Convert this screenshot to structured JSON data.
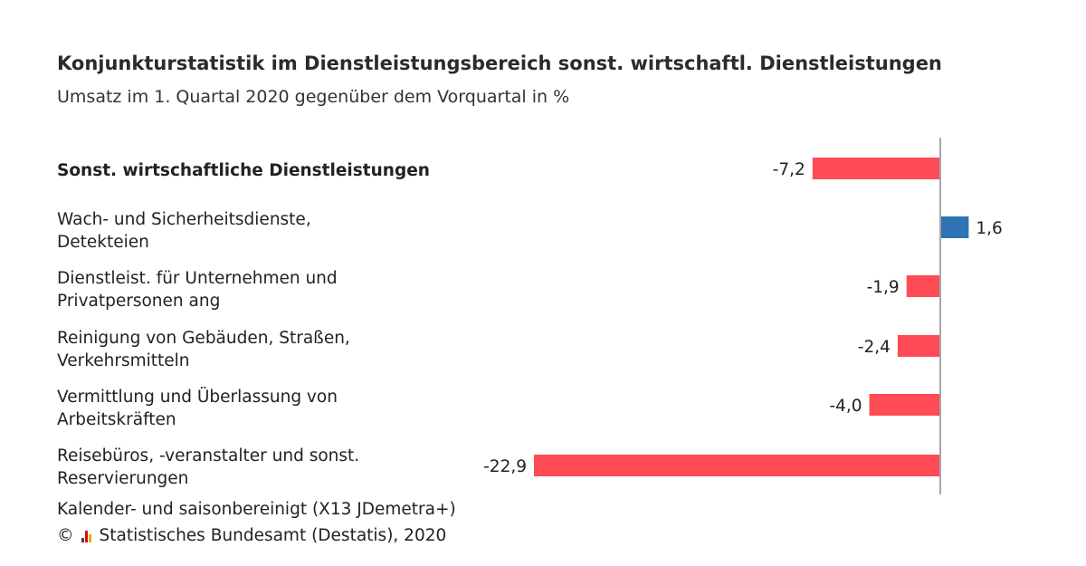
{
  "header": {
    "title": "Konjunkturstatistik im Dienstleistungsbereich sonst. wirtschaftl. Dienstleistungen",
    "subtitle": "Umsatz im 1. Quartal 2020 gegenüber dem Vorquartal in %"
  },
  "categories": [
    {
      "line1": "Sonst. wirtschaftliche Dienstleistungen",
      "line2": ""
    },
    {
      "line1": "Wach- und Sicherheitsdienste,",
      "line2": "Detekteien"
    },
    {
      "line1": "Dienstleist. für Unternehmen und",
      "line2": "Privatpersonen ang"
    },
    {
      "line1": "Reinigung von Gebäuden, Straßen,",
      "line2": "Verkehrsmitteln"
    },
    {
      "line1": "Vermittlung und Überlassung von",
      "line2": "Arbeitskräften"
    },
    {
      "line1": "Reisebüros, -veranstalter und sonst.",
      "line2": "Reservierungen"
    }
  ],
  "chart_data": {
    "type": "bar",
    "orientation": "horizontal",
    "title": "Konjunkturstatistik im Dienstleistungsbereich sonst. wirtschaftl. Dienstleistungen",
    "subtitle": "Umsatz im 1. Quartal 2020 gegenüber dem Vorquartal in %",
    "categories": [
      "Sonst. wirtschaftliche Dienstleistungen",
      "Wach- und Sicherheitsdienste, Detekteien",
      "Dienstleist. für Unternehmen und Privatpersonen ang",
      "Reinigung von Gebäuden, Straßen, Verkehrsmitteln",
      "Vermittlung und Überlassung von Arbeitskräften",
      "Reisebüros, -veranstalter und sonst. Reservierungen"
    ],
    "values": [
      -7.2,
      1.6,
      -1.9,
      -2.4,
      -4.0,
      -22.9
    ],
    "value_labels": [
      "-7,2",
      "1,6",
      "-1,9",
      "-2,4",
      "-4,0",
      "-22,9"
    ],
    "xlim": [
      -22.9,
      1.6
    ],
    "xlabel": "",
    "ylabel": "",
    "grid": false,
    "colors": {
      "negative": "#ff4b55",
      "positive": "#2e74b5",
      "axis": "#a6a6a6"
    }
  },
  "footer": {
    "note": "Kalender- und saisonbereinigt (X13 JDemetra+)",
    "copyright": "© Statistisches Bundesamt (Destatis), 2020",
    "logo_icon": "destatis-bars-icon"
  }
}
